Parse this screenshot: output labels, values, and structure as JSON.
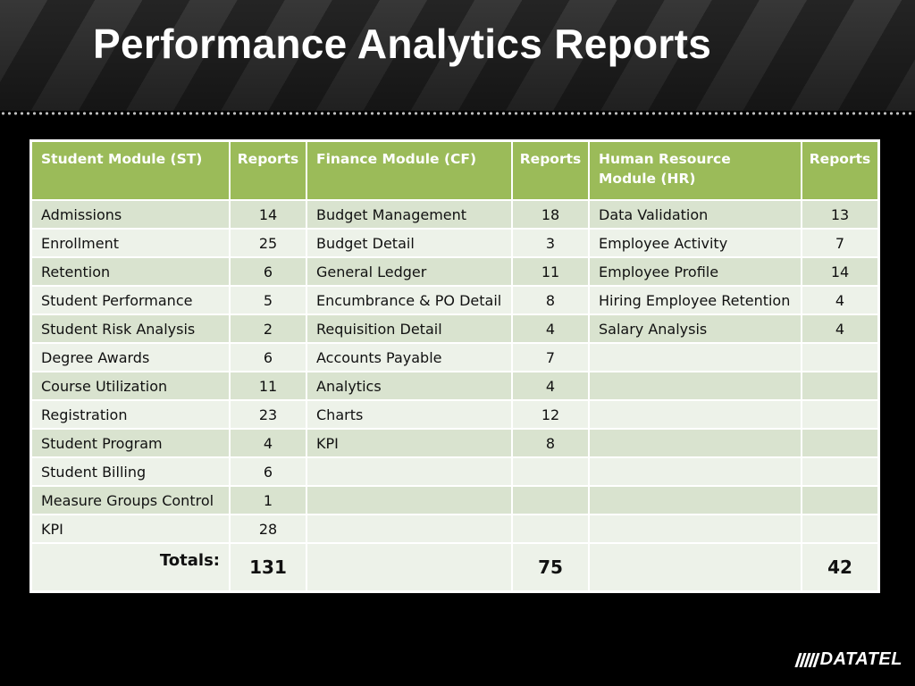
{
  "title": "Performance Analytics Reports",
  "headers": {
    "st_module": "Student Module (ST)",
    "st_reports": "Reports",
    "cf_module": "Finance Module (CF)",
    "cf_reports": "Reports",
    "hr_module": "Human Resource Module (HR)",
    "hr_reports": "Reports"
  },
  "rows": [
    {
      "st": "Admissions",
      "st_n": "14",
      "cf": "Budget Management",
      "cf_n": "18",
      "hr": "Data Validation",
      "hr_n": "13"
    },
    {
      "st": "Enrollment",
      "st_n": "25",
      "cf": "Budget Detail",
      "cf_n": "3",
      "hr": "Employee Activity",
      "hr_n": "7"
    },
    {
      "st": "Retention",
      "st_n": "6",
      "cf": "General Ledger",
      "cf_n": "11",
      "hr": "Employee Profile",
      "hr_n": "14"
    },
    {
      "st": "Student Performance",
      "st_n": "5",
      "cf": "Encumbrance & PO Detail",
      "cf_n": "8",
      "hr": "Hiring Employee Retention",
      "hr_n": "4"
    },
    {
      "st": "Student Risk Analysis",
      "st_n": "2",
      "cf": "Requisition Detail",
      "cf_n": "4",
      "hr": "Salary Analysis",
      "hr_n": "4"
    },
    {
      "st": "Degree Awards",
      "st_n": "6",
      "cf": "Accounts Payable",
      "cf_n": "7",
      "hr": "",
      "hr_n": ""
    },
    {
      "st": "Course Utilization",
      "st_n": "11",
      "cf": "Analytics",
      "cf_n": "4",
      "hr": "",
      "hr_n": ""
    },
    {
      "st": "Registration",
      "st_n": "23",
      "cf": "Charts",
      "cf_n": "12",
      "hr": "",
      "hr_n": ""
    },
    {
      "st": "Student Program",
      "st_n": "4",
      "cf": "KPI",
      "cf_n": "8",
      "hr": "",
      "hr_n": ""
    },
    {
      "st": "Student Billing",
      "st_n": "6",
      "cf": "",
      "cf_n": "",
      "hr": "",
      "hr_n": ""
    },
    {
      "st": "Measure Groups Control",
      "st_n": "1",
      "cf": "",
      "cf_n": "",
      "hr": "",
      "hr_n": ""
    },
    {
      "st": "KPI",
      "st_n": "28",
      "cf": "",
      "cf_n": "",
      "hr": "",
      "hr_n": ""
    }
  ],
  "totals": {
    "label": "Totals:",
    "st": "131",
    "cf": "75",
    "hr": "42"
  },
  "logo": {
    "text": "DATATEL",
    "icon": "speed-bars-icon"
  },
  "colors": {
    "header_green": "#9bbb59",
    "row_dark": "#d9e3cf",
    "row_light": "#edf2e9",
    "background": "#000000"
  }
}
